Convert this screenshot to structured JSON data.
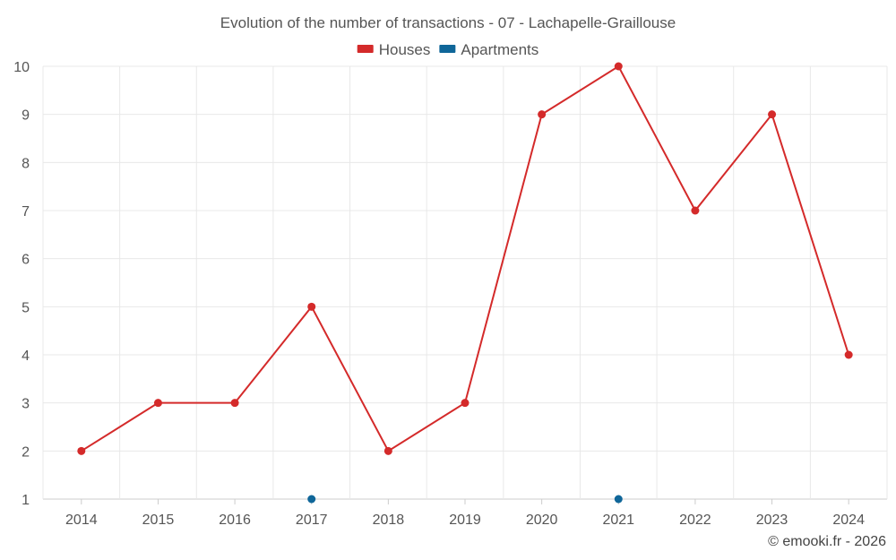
{
  "chart_data": {
    "type": "line",
    "title": "Evolution of the number of transactions - 07 - Lachapelle-Graillouse",
    "categories": [
      "2014",
      "2015",
      "2016",
      "2017",
      "2018",
      "2019",
      "2020",
      "2021",
      "2022",
      "2023",
      "2024"
    ],
    "ylim": [
      1,
      10
    ],
    "yticks": [
      "1",
      "2",
      "3",
      "4",
      "5",
      "6",
      "7",
      "8",
      "9",
      "10"
    ],
    "xlabel": "",
    "ylabel": "",
    "grid": true,
    "legend_position": "top-center",
    "series": [
      {
        "name": "Houses",
        "color": "#d42a2a",
        "points": [
          {
            "x": "2014",
            "y": 2
          },
          {
            "x": "2015",
            "y": 3
          },
          {
            "x": "2016",
            "y": 3
          },
          {
            "x": "2017",
            "y": 5
          },
          {
            "x": "2018",
            "y": 2
          },
          {
            "x": "2019",
            "y": 3
          },
          {
            "x": "2020",
            "y": 9
          },
          {
            "x": "2021",
            "y": 10
          },
          {
            "x": "2022",
            "y": 7
          },
          {
            "x": "2023",
            "y": 9
          },
          {
            "x": "2024",
            "y": 4
          }
        ]
      },
      {
        "name": "Apartments",
        "color": "#0f6699",
        "points": [
          {
            "x": "2017",
            "y": 1
          },
          {
            "x": "2021",
            "y": 1
          }
        ]
      }
    ]
  },
  "credit": "© emooki.fr - 2026"
}
